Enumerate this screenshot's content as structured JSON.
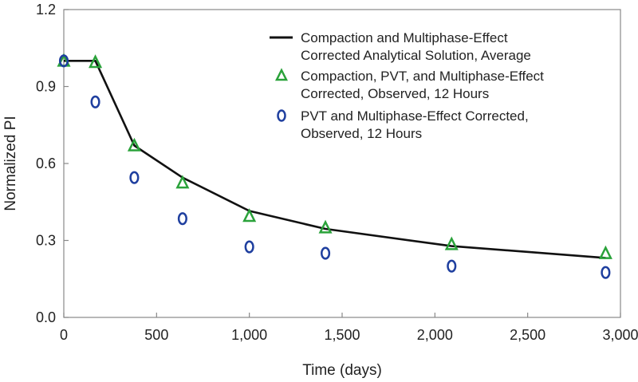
{
  "chart_data": {
    "type": "line",
    "xlabel": "Time (days)",
    "ylabel": "Normalized PI",
    "xlim": [
      0,
      3000
    ],
    "ylim": [
      0,
      1.2
    ],
    "xticks": [
      0,
      500,
      1000,
      1500,
      2000,
      2500,
      3000
    ],
    "xtick_labels": [
      "0",
      "500",
      "1,000",
      "1,500",
      "2,000",
      "2,500",
      "3,000"
    ],
    "yticks": [
      0,
      0.3,
      0.6,
      0.9,
      1.2
    ],
    "ytick_labels": [
      "0.0",
      "0.3",
      "0.6",
      "0.9",
      "1.2"
    ],
    "grid": false,
    "legend_position": "top-right",
    "colors": {
      "line": "#111111",
      "triangle": "#2aa23a",
      "circle": "#1f3f9f"
    },
    "series": [
      {
        "name": "Compaction and Multiphase-Effect Corrected Analytical Solution, Average",
        "legend_lines": [
          "Compaction and Multiphase-Effect",
          "Corrected Analytical Solution, Average"
        ],
        "kind": "line",
        "x": [
          0,
          170,
          380,
          640,
          1000,
          1410,
          2090,
          2920
        ],
        "y": [
          1.0,
          1.0,
          0.67,
          0.545,
          0.415,
          0.345,
          0.278,
          0.232
        ]
      },
      {
        "name": "Compaction, PVT, and Multiphase-Effect Corrected, Observed, 12 Hours",
        "legend_lines": [
          "Compaction, PVT, and Multiphase-Effect",
          "Corrected, Observed, 12 Hours"
        ],
        "kind": "triangle",
        "x": [
          0,
          170,
          380,
          640,
          1000,
          1410,
          2090,
          2920
        ],
        "y": [
          1.0,
          0.995,
          0.67,
          0.525,
          0.395,
          0.35,
          0.285,
          0.25
        ]
      },
      {
        "name": "PVT and Multiphase-Effect Corrected, Observed, 12 Hours",
        "legend_lines": [
          "PVT and Multiphase-Effect Corrected,",
          "Observed, 12 Hours"
        ],
        "kind": "circle",
        "x": [
          0,
          170,
          380,
          640,
          1000,
          1410,
          2090,
          2920
        ],
        "y": [
          1.0,
          0.84,
          0.545,
          0.385,
          0.275,
          0.25,
          0.2,
          0.175
        ]
      }
    ]
  }
}
